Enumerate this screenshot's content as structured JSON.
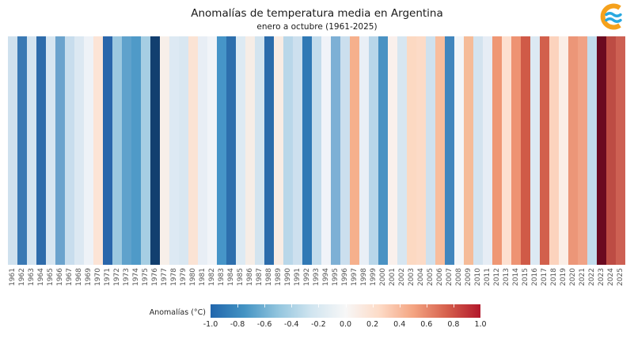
{
  "header": {
    "title": "Anomalías de temperatura media en Argentina",
    "subtitle": "enero a octubre (1961-2025)",
    "logo": {
      "name": "smn-logo",
      "orange": "#F5A11C",
      "blue": "#29A8E0"
    }
  },
  "chart_data": {
    "type": "heatmap",
    "style": "warming-stripes",
    "title": "Anomalías de temperatura media en Argentina",
    "subtitle": "enero a octubre (1961-2025)",
    "xlabel": "",
    "ylabel": "",
    "legend_position": "bottom",
    "categories": [
      "1961",
      "1962",
      "1963",
      "1964",
      "1965",
      "1966",
      "1967",
      "1968",
      "1969",
      "1970",
      "1971",
      "1972",
      "1973",
      "1974",
      "1975",
      "1976",
      "1977",
      "1978",
      "1979",
      "1980",
      "1981",
      "1982",
      "1983",
      "1984",
      "1985",
      "1986",
      "1987",
      "1988",
      "1989",
      "1990",
      "1991",
      "1992",
      "1993",
      "1994",
      "1995",
      "1996",
      "1997",
      "1998",
      "1999",
      "2000",
      "2001",
      "2002",
      "2003",
      "2004",
      "2005",
      "2006",
      "2007",
      "2008",
      "2009",
      "2010",
      "2011",
      "2012",
      "2013",
      "2014",
      "2015",
      "2016",
      "2017",
      "2018",
      "2019",
      "2020",
      "2021",
      "2022",
      "2023",
      "2024",
      "2025"
    ],
    "values": [
      -0.3,
      -0.75,
      -0.28,
      -0.85,
      -0.26,
      -0.55,
      -0.33,
      -0.22,
      -0.08,
      0.12,
      -0.88,
      -0.42,
      -0.6,
      -0.65,
      -0.38,
      -1.15,
      0.04,
      -0.2,
      -0.24,
      0.13,
      -0.13,
      -0.07,
      -0.68,
      -0.84,
      -0.2,
      0.05,
      -0.27,
      -0.85,
      0.06,
      -0.45,
      -0.3,
      -0.78,
      -0.36,
      -0.08,
      -0.52,
      -0.32,
      0.42,
      -0.12,
      -0.46,
      -0.62,
      0.03,
      -0.26,
      0.25,
      0.23,
      -0.3,
      0.35,
      -0.7,
      -0.06,
      0.36,
      -0.28,
      -0.15,
      0.52,
      0.2,
      0.54,
      0.75,
      -0.21,
      0.72,
      0.26,
      0.08,
      0.53,
      0.44,
      -0.37,
      1.15,
      0.82,
      0.68
    ],
    "colors": [
      "#cfe1ee",
      "#3a79b4",
      "#d4e4f0",
      "#2e6cab",
      "#d7e6f1",
      "#6ba3cd",
      "#c8dded",
      "#dce8f2",
      "#eef2f7",
      "#fce4d6",
      "#2a66ab",
      "#9cc8e0",
      "#5fa2cc",
      "#4f9ac8",
      "#a6cee3",
      "#123f6f",
      "#f7efe9",
      "#dde9f3",
      "#d9e7f1",
      "#fbe3d4",
      "#e8eef5",
      "#f1f4f8",
      "#4695c8",
      "#2d6fad",
      "#ddeaf3",
      "#f6ede6",
      "#d3e4ef",
      "#2b6cab",
      "#f8ece4",
      "#b9d7e9",
      "#cde0ee",
      "#3079b5",
      "#c3dcec",
      "#f0f3f8",
      "#7db0d5",
      "#cbdfee",
      "#f6b08c",
      "#e9eff6",
      "#b8d6e9",
      "#4a92c3",
      "#faf0ec",
      "#d7e6f1",
      "#fcd9c2",
      "#fcdbc7",
      "#cfe1ee",
      "#f8bd9c",
      "#4186bd",
      "#f2f5f8",
      "#f5bb98",
      "#d3e3ef",
      "#e6edf5",
      "#ef9774",
      "#fde0d0",
      "#ee9372",
      "#d05a47",
      "#dce9f3",
      "#d2604c",
      "#fcd3bd",
      "#fbeee6",
      "#ec9678",
      "#f0a285",
      "#c2dcec",
      "#6b0a20",
      "#bd4c44",
      "#cd6053"
    ],
    "colorbar": {
      "label": "Anomalías (°C)",
      "ticks": [
        "-1.0",
        "-0.8",
        "-0.6",
        "-0.4",
        "-0.2",
        "0.0",
        "0.2",
        "0.4",
        "0.6",
        "0.8",
        "1.0"
      ],
      "range": [
        -1.0,
        1.0
      ],
      "gradient": [
        "#2166ac",
        "#4393c3",
        "#92c5de",
        "#d1e5f0",
        "#f7f7f7",
        "#fddbc7",
        "#f4a582",
        "#d6604d",
        "#b2182b"
      ]
    }
  }
}
